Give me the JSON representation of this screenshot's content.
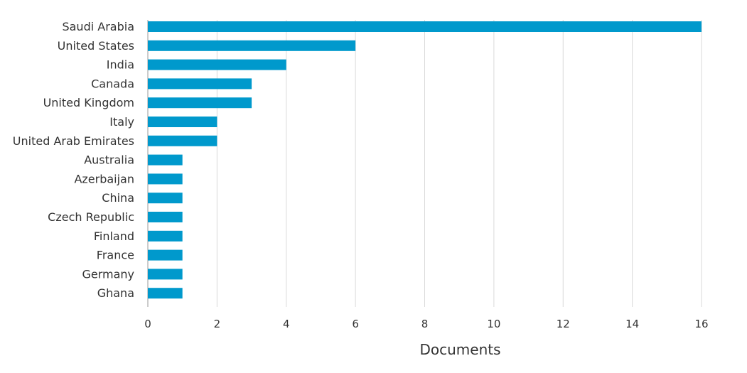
{
  "chart_data": {
    "type": "bar",
    "orientation": "horizontal",
    "categories": [
      "Saudi Arabia",
      "United States",
      "India",
      "Canada",
      "United Kingdom",
      "Italy",
      "United Arab Emirates",
      "Australia",
      "Azerbaijan",
      "China",
      "Czech Republic",
      "Finland",
      "France",
      "Germany",
      "Ghana"
    ],
    "values": [
      16,
      6,
      4,
      3,
      3,
      2,
      2,
      1,
      1,
      1,
      1,
      1,
      1,
      1,
      1
    ],
    "xlabel": "Documents",
    "ylabel": "",
    "xlim": [
      0,
      16
    ],
    "xticks": [
      "0",
      "2",
      "4",
      "6",
      "8",
      "10",
      "12",
      "14",
      "16"
    ],
    "grid": "vertical",
    "bar_color": "#0099cc"
  }
}
